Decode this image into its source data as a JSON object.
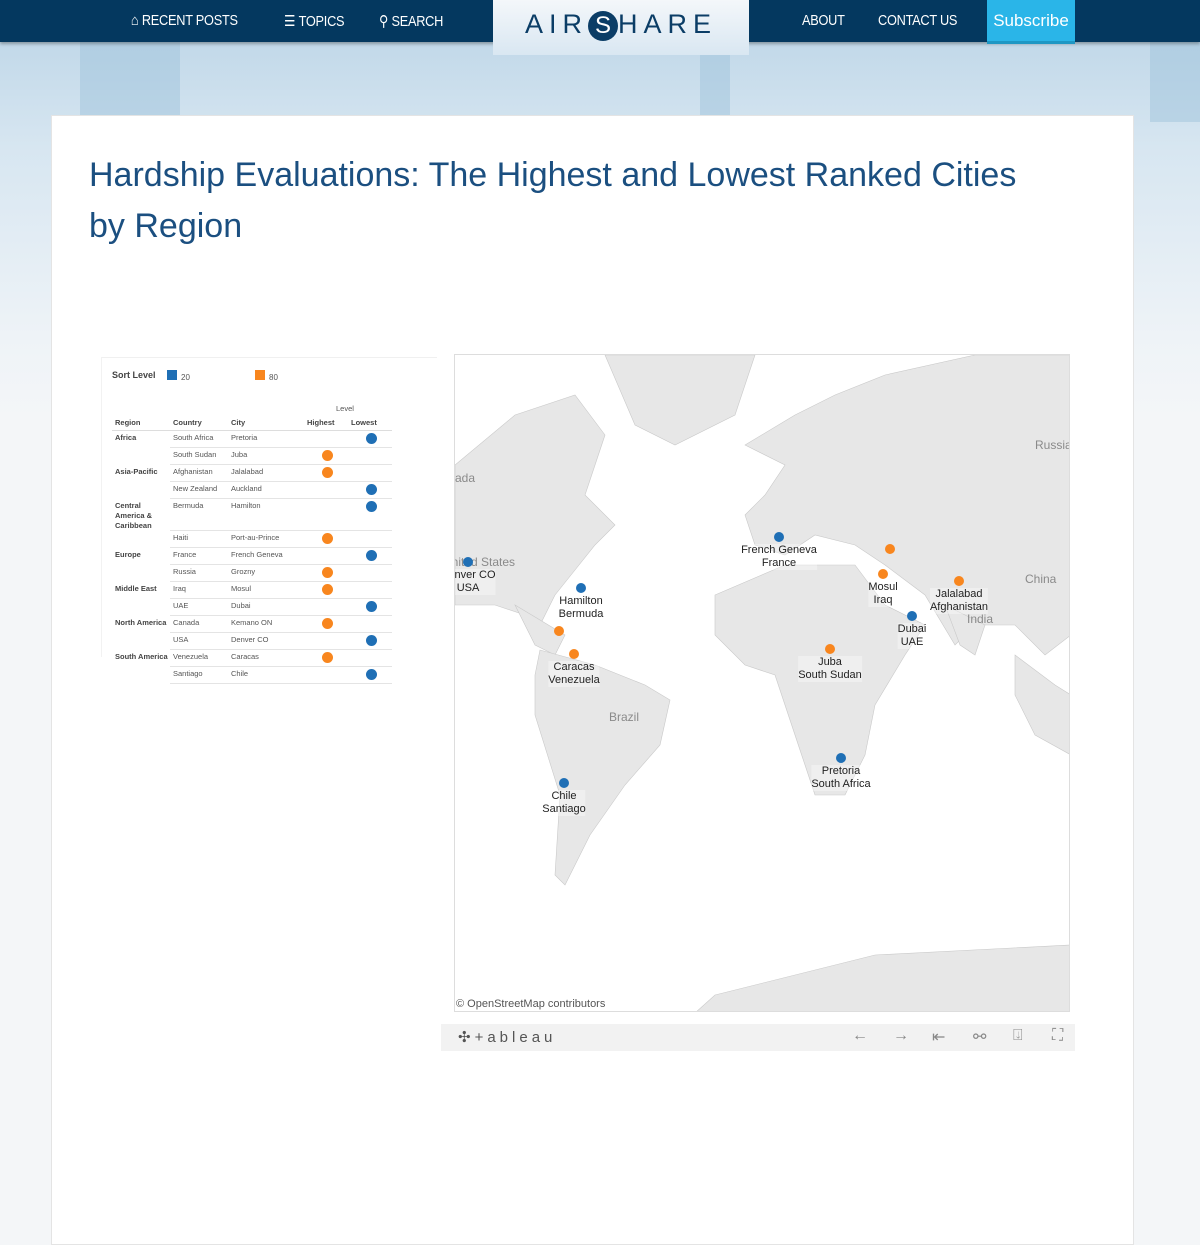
{
  "nav": {
    "recent_posts": "RECENT POSTS",
    "topics": "TOPICS",
    "search": "SEARCH",
    "logo_pre": "AIR",
    "logo_s": "S",
    "logo_post": "HARE",
    "about": "ABOUT",
    "contact": "CONTACT US",
    "subscribe": "Subscribe"
  },
  "article": {
    "title": "Hardship Evaluations: The Highest and Lowest Ranked Cities by Region"
  },
  "legend": {
    "title": "Sort Level",
    "items": [
      {
        "label": "20",
        "color": "#1f6fb5"
      },
      {
        "label": "80",
        "color": "#f8861e"
      }
    ]
  },
  "table": {
    "level_header": "Level",
    "headers": [
      "Region",
      "Country",
      "City",
      "Highest",
      "Lowest"
    ],
    "rows": [
      {
        "region": "Africa",
        "country": "South Africa",
        "city": "Pretoria",
        "level": "lowest"
      },
      {
        "region": "",
        "country": "South Sudan",
        "city": "Juba",
        "level": "highest"
      },
      {
        "region": "Asia-Pacific",
        "country": "Afghanistan",
        "city": "Jalalabad",
        "level": "highest"
      },
      {
        "region": "",
        "country": "New Zealand",
        "city": "Auckland",
        "level": "lowest"
      },
      {
        "region": "Central America & Caribbean",
        "country": "Bermuda",
        "city": "Hamilton",
        "level": "lowest"
      },
      {
        "region": "",
        "country": "Haiti",
        "city": "Port-au-Prince",
        "level": "highest"
      },
      {
        "region": "Europe",
        "country": "France",
        "city": "French Geneva",
        "level": "lowest"
      },
      {
        "region": "",
        "country": "Russia",
        "city": "Grozny",
        "level": "highest"
      },
      {
        "region": "Middle East",
        "country": "Iraq",
        "city": "Mosul",
        "level": "highest"
      },
      {
        "region": "",
        "country": "UAE",
        "city": "Dubai",
        "level": "lowest"
      },
      {
        "region": "North America",
        "country": "Canada",
        "city": "Kemano ON",
        "level": "highest"
      },
      {
        "region": "",
        "country": "USA",
        "city": "Denver CO",
        "level": "lowest"
      },
      {
        "region": "South America",
        "country": "Venezuela",
        "city": "Caracas",
        "level": "highest"
      },
      {
        "region": "",
        "country": "Santiago",
        "city": "Chile",
        "level": "lowest"
      }
    ]
  },
  "map": {
    "base_labels": [
      "ada",
      "United States",
      "Russia",
      "China",
      "India",
      "Brazil"
    ],
    "markers": [
      {
        "l1": "Denver CO",
        "l2": "USA",
        "level": "lowest"
      },
      {
        "l1": "Hamilton",
        "l2": "Bermuda",
        "level": "lowest"
      },
      {
        "l1": "",
        "l2": "",
        "level": "highest"
      },
      {
        "l1": "Caracas",
        "l2": "Venezuela",
        "level": "highest"
      },
      {
        "l1": "Chile",
        "l2": "Santiago",
        "level": "lowest"
      },
      {
        "l1": "French Geneva",
        "l2": "France",
        "level": "lowest"
      },
      {
        "l1": "",
        "l2": "",
        "level": "highest"
      },
      {
        "l1": "Mosul",
        "l2": "Iraq",
        "level": "highest"
      },
      {
        "l1": "Jalalabad",
        "l2": "Afghanistan",
        "level": "highest"
      },
      {
        "l1": "Dubai",
        "l2": "UAE",
        "level": "lowest"
      },
      {
        "l1": "Juba",
        "l2": "South Sudan",
        "level": "highest"
      },
      {
        "l1": "Pretoria",
        "l2": "South Africa",
        "level": "lowest"
      }
    ],
    "attribution": "© OpenStreetMap contributors"
  },
  "toolbar": {
    "brand": "+ableau",
    "undo": "←",
    "redo": "→",
    "revert": "⇤",
    "share": "share-icon",
    "download": "download-icon",
    "fullscreen": "fullscreen-icon"
  },
  "colors": {
    "lowest": "#1f6fb5",
    "highest": "#f8861e",
    "nav": "#04385f",
    "subscribe": "#2ab5e8",
    "title": "#1b4f80"
  }
}
